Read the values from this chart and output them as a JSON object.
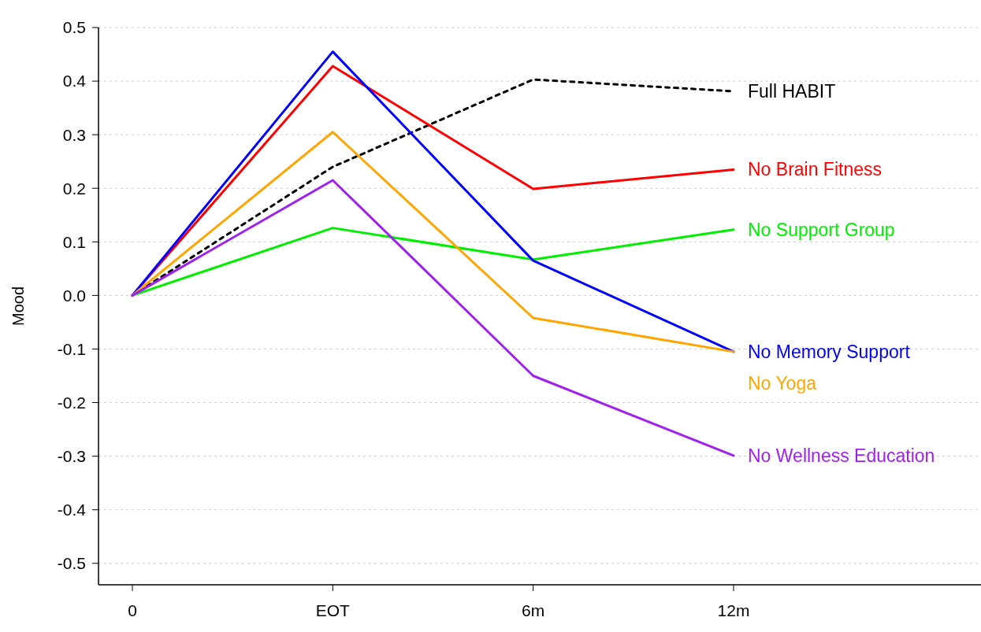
{
  "chart_data": {
    "type": "line",
    "ylabel": "Mood",
    "ylim": [
      -0.54,
      0.5
    ],
    "categories": [
      "0",
      "EOT",
      "6m",
      "12m"
    ],
    "yticks": [
      {
        "value": 0.5,
        "label": "0.5"
      },
      {
        "value": 0.4,
        "label": "0.4"
      },
      {
        "value": 0.3,
        "label": "0.3"
      },
      {
        "value": 0.2,
        "label": "0.2"
      },
      {
        "value": 0.1,
        "label": "0.1"
      },
      {
        "value": 0,
        "label": "0.0"
      },
      {
        "value": -0.1,
        "label": "-0.1"
      },
      {
        "value": -0.2,
        "label": "-0.2"
      },
      {
        "value": -0.3,
        "label": "-0.3"
      },
      {
        "value": -0.4,
        "label": "-0.4"
      },
      {
        "value": -0.5,
        "label": "-0.5"
      }
    ],
    "grid": "y",
    "legend": false,
    "marker": "none",
    "series": [
      {
        "name": "Full HABIT",
        "color": "#000000",
        "line_style": "dashed",
        "values": [
          0,
          0.24,
          0.403,
          0.381
        ]
      },
      {
        "name": "No Brain Fitness",
        "color": "#ff0000",
        "values": [
          0,
          0.428,
          0.199,
          0.235
        ]
      },
      {
        "name": "No Support Group",
        "color": "#00ee00",
        "values": [
          0,
          0.126,
          0.067,
          0.123
        ]
      },
      {
        "name": "No Memory Support",
        "color": "#0000ff",
        "values": [
          0,
          0.455,
          0.065,
          -0.105
        ]
      },
      {
        "name": "No Yoga",
        "color": "#ffa500",
        "values": [
          0,
          0.305,
          -0.042,
          -0.105
        ]
      },
      {
        "name": "No Wellness Education",
        "color": "#a020f0",
        "values": [
          0,
          0.215,
          -0.15,
          -0.299
        ]
      }
    ]
  }
}
